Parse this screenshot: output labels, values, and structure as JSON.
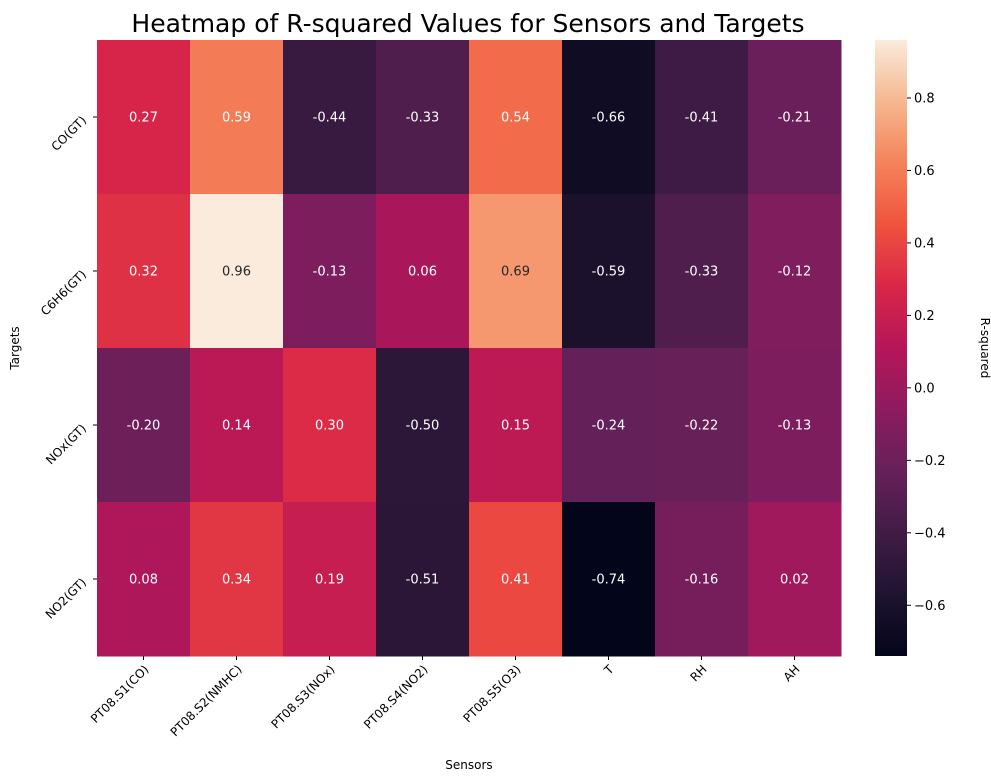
{
  "chart_data": {
    "type": "heatmap",
    "title": "Heatmap of R-squared Values for Sensors and Targets",
    "xlabel": "Sensors",
    "ylabel": "Targets",
    "x_categories": [
      "PT08.S1(CO)",
      "PT08.S2(NMHC)",
      "PT08.S3(NOx)",
      "PT08.S4(NO2)",
      "PT08.S5(O3)",
      "T",
      "RH",
      "AH"
    ],
    "y_categories": [
      "CO(GT)",
      "C6H6(GT)",
      "NOx(GT)",
      "NO2(GT)"
    ],
    "values": [
      [
        0.27,
        0.59,
        -0.44,
        -0.33,
        0.54,
        -0.66,
        -0.41,
        -0.21
      ],
      [
        0.32,
        0.96,
        -0.13,
        0.06,
        0.69,
        -0.59,
        -0.33,
        -0.12
      ],
      [
        -0.2,
        0.14,
        0.3,
        -0.5,
        0.15,
        -0.24,
        -0.22,
        -0.13
      ],
      [
        0.08,
        0.34,
        0.19,
        -0.51,
        0.41,
        -0.74,
        -0.16,
        0.02
      ]
    ],
    "value_labels": [
      [
        "0.27",
        "0.59",
        "-0.44",
        "-0.33",
        "0.54",
        "-0.66",
        "-0.41",
        "-0.21"
      ],
      [
        "0.32",
        "0.96",
        "-0.13",
        "0.06",
        "0.69",
        "-0.59",
        "-0.33",
        "-0.12"
      ],
      [
        "-0.20",
        "0.14",
        "0.30",
        "-0.50",
        "0.15",
        "-0.24",
        "-0.22",
        "-0.13"
      ],
      [
        "0.08",
        "0.34",
        "0.19",
        "-0.51",
        "0.41",
        "-0.74",
        "-0.16",
        "0.02"
      ]
    ],
    "colorbar": {
      "label": "R-squared",
      "colormap": "rocket",
      "vmin": -0.74,
      "vmax": 0.96,
      "ticks": [
        -0.6,
        -0.4,
        -0.2,
        0.0,
        0.2,
        0.4,
        0.6,
        0.8
      ],
      "tick_labels": [
        "−0.6",
        "−0.4",
        "−0.2",
        "0.0",
        "0.2",
        "0.4",
        "0.6",
        "0.8"
      ]
    },
    "grid": false
  }
}
